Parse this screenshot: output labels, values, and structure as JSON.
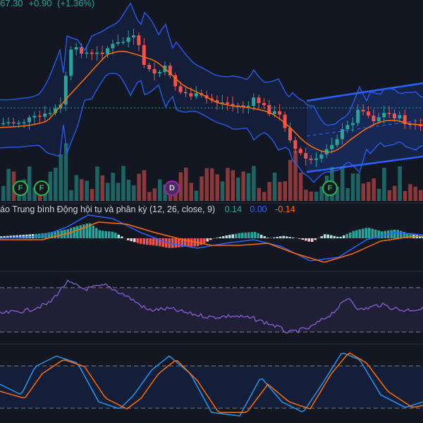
{
  "header": {
    "price": "67.30",
    "change": "+0.90",
    "change_pct": "(+1.36%)"
  },
  "macd_legend": {
    "label": "áo Trung bình Động hội tụ và phân kỳ",
    "params": "(12, 26, close, 9)",
    "value_hist": "0.14",
    "value_macd": "0.00",
    "value_signal": "-0.14"
  },
  "event_markers": [
    {
      "label": "F",
      "kind": "f"
    },
    {
      "label": "F",
      "kind": "f"
    },
    {
      "label": "D",
      "kind": "d"
    },
    {
      "label": "F",
      "kind": "f"
    }
  ],
  "colors": {
    "background": "#131722",
    "up": "#26a69a",
    "down": "#ef5350",
    "bollinger": "#2962ff",
    "ma": "#ff6d00",
    "rsi": "#7e57c2",
    "channel": "#2962ff"
  }
}
